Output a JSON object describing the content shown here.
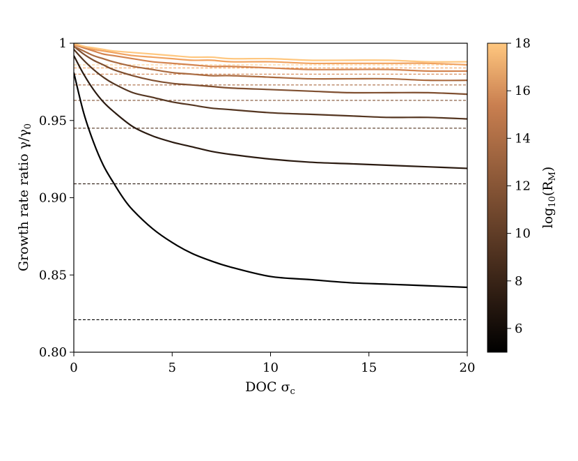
{
  "chart_data": {
    "type": "line",
    "title": "",
    "xlabel": "DOC σ",
    "xlabel_sub": "c",
    "ylabel": "Growth rate ratio γ/γ",
    "ylabel_sub": "0",
    "xlim": [
      0,
      20
    ],
    "ylim": [
      0.8,
      1.0
    ],
    "x_ticks": [
      0,
      5,
      10,
      15,
      20
    ],
    "x_tick_labels": [
      "0",
      "5",
      "10",
      "15",
      "20"
    ],
    "y_ticks": [
      0.8,
      0.85,
      0.9,
      0.95,
      1.0
    ],
    "y_tick_labels": [
      "0.80",
      "0.85",
      "0.90",
      "0.95",
      "1"
    ],
    "grid": false,
    "colorbar": {
      "label": "log",
      "label_sub": "10",
      "label_arg": "(R",
      "label_arg_sub": "M",
      "label_close": ")",
      "range": [
        5,
        18
      ],
      "ticks": [
        6,
        8,
        10,
        12,
        14,
        16,
        18
      ],
      "tick_labels": [
        "6",
        "8",
        "10",
        "12",
        "14",
        "16",
        "18"
      ],
      "colormap": "copper"
    },
    "series": [
      {
        "log10RM": 5,
        "color": "#000000",
        "asymptote": 0.821,
        "x": [
          0,
          0.5,
          1,
          1.5,
          2,
          2.5,
          3,
          4,
          5,
          6,
          7,
          8,
          10,
          12,
          14,
          16,
          18,
          20
        ],
        "values": [
          0.981,
          0.955,
          0.936,
          0.921,
          0.91,
          0.9,
          0.892,
          0.88,
          0.871,
          0.864,
          0.859,
          0.855,
          0.849,
          0.847,
          0.845,
          0.844,
          0.843,
          0.842
        ]
      },
      {
        "log10RM": 7,
        "color": "#2a1a10",
        "asymptote": 0.909,
        "x": [
          0,
          0.5,
          1,
          1.5,
          2,
          3,
          4,
          5,
          6,
          7,
          8,
          10,
          12,
          14,
          16,
          18,
          20
        ],
        "values": [
          0.992,
          0.98,
          0.97,
          0.962,
          0.956,
          0.946,
          0.94,
          0.936,
          0.933,
          0.93,
          0.928,
          0.925,
          0.923,
          0.922,
          0.921,
          0.92,
          0.919
        ]
      },
      {
        "log10RM": 9,
        "color": "#543520",
        "asymptote": 0.945,
        "x": [
          0,
          0.5,
          1,
          1.5,
          2,
          3,
          4,
          5,
          6,
          7,
          8,
          10,
          12,
          14,
          16,
          18,
          20
        ],
        "values": [
          0.996,
          0.989,
          0.983,
          0.978,
          0.974,
          0.968,
          0.965,
          0.962,
          0.96,
          0.958,
          0.957,
          0.955,
          0.954,
          0.953,
          0.952,
          0.952,
          0.951
        ]
      },
      {
        "log10RM": 11,
        "color": "#7f4f30",
        "asymptote": 0.963,
        "x": [
          0,
          0.5,
          1,
          1.5,
          2,
          3,
          4,
          5,
          6,
          7,
          8,
          10,
          12,
          14,
          16,
          18,
          20
        ],
        "values": [
          0.998,
          0.993,
          0.989,
          0.986,
          0.983,
          0.979,
          0.976,
          0.974,
          0.973,
          0.972,
          0.971,
          0.97,
          0.969,
          0.968,
          0.968,
          0.968,
          0.967
        ]
      },
      {
        "log10RM": 13,
        "color": "#a96a40",
        "asymptote": 0.973,
        "x": [
          0,
          0.5,
          1,
          1.5,
          2,
          3,
          4,
          5,
          6,
          7,
          8,
          10,
          12,
          14,
          16,
          18,
          20
        ],
        "values": [
          0.998,
          0.995,
          0.992,
          0.99,
          0.988,
          0.985,
          0.983,
          0.981,
          0.98,
          0.979,
          0.979,
          0.978,
          0.977,
          0.977,
          0.977,
          0.976,
          0.976
        ]
      },
      {
        "log10RM": 15,
        "color": "#d38450",
        "asymptote": 0.98,
        "x": [
          0,
          0.5,
          1,
          1.5,
          2,
          3,
          4,
          5,
          6,
          7,
          8,
          10,
          12,
          14,
          16,
          18,
          20
        ],
        "values": [
          0.999,
          0.997,
          0.995,
          0.993,
          0.992,
          0.99,
          0.988,
          0.987,
          0.986,
          0.985,
          0.985,
          0.984,
          0.983,
          0.983,
          0.983,
          0.982,
          0.982
        ]
      },
      {
        "log10RM": 17,
        "color": "#f0a260",
        "asymptote": 0.984,
        "x": [
          0,
          0.5,
          1,
          1.5,
          2,
          3,
          4,
          5,
          6,
          7,
          8,
          10,
          12,
          14,
          16,
          18,
          20
        ],
        "values": [
          0.999,
          0.998,
          0.996,
          0.995,
          0.994,
          0.992,
          0.991,
          0.99,
          0.989,
          0.989,
          0.988,
          0.988,
          0.987,
          0.987,
          0.987,
          0.987,
          0.986
        ]
      },
      {
        "log10RM": 18,
        "color": "#ffc77f",
        "asymptote": 0.986,
        "x": [
          0,
          0.5,
          1,
          1.5,
          2,
          3,
          4,
          5,
          6,
          7,
          8,
          10,
          12,
          14,
          16,
          18,
          20
        ],
        "values": [
          1.0,
          0.998,
          0.997,
          0.996,
          0.995,
          0.994,
          0.993,
          0.992,
          0.991,
          0.991,
          0.99,
          0.99,
          0.989,
          0.989,
          0.989,
          0.988,
          0.988
        ]
      }
    ]
  }
}
